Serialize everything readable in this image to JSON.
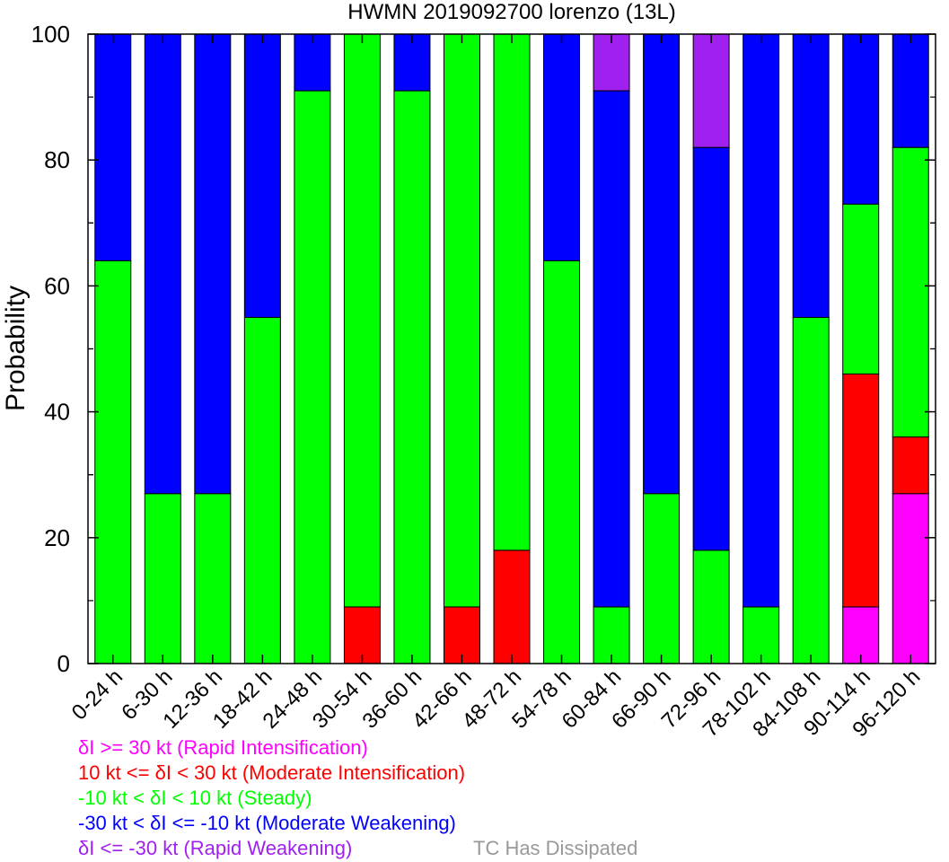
{
  "chart_data": {
    "type": "bar",
    "stacked": true,
    "title": "HWMN 2019092700 lorenzo (13L)",
    "ylabel": "Probability",
    "xlabel": "",
    "ylim": [
      0,
      100
    ],
    "yticks": [
      "0",
      "20",
      "40",
      "60",
      "80",
      "100"
    ],
    "categories": [
      "0-24 h",
      "6-30 h",
      "12-36 h",
      "18-42 h",
      "24-48 h",
      "30-54 h",
      "36-60 h",
      "42-66 h",
      "48-72 h",
      "54-78 h",
      "60-84 h",
      "66-90 h",
      "72-96 h",
      "78-102 h",
      "84-108 h",
      "90-114 h",
      "96-120 h"
    ],
    "series": [
      {
        "name": "δI >= 30 kt (Rapid Intensification)",
        "color": "#ff00ff",
        "values": [
          0,
          0,
          0,
          0,
          0,
          0,
          0,
          0,
          0,
          0,
          0,
          0,
          0,
          0,
          0,
          9,
          27
        ]
      },
      {
        "name": "10 kt <= δI < 30 kt (Moderate Intensification)",
        "color": "#ff0000",
        "values": [
          0,
          0,
          0,
          0,
          0,
          9,
          0,
          9,
          18,
          0,
          0,
          0,
          0,
          0,
          0,
          37,
          9
        ]
      },
      {
        "name": "-10 kt < δI < 10 kt (Steady)",
        "color": "#00ff00",
        "values": [
          64,
          27,
          27,
          55,
          91,
          91,
          91,
          91,
          82,
          64,
          9,
          27,
          18,
          9,
          55,
          27,
          46
        ]
      },
      {
        "name": "-30 kt < δI <= -10 kt (Moderate Weakening)",
        "color": "#0000ff",
        "values": [
          36,
          73,
          73,
          45,
          9,
          0,
          9,
          0,
          0,
          36,
          82,
          73,
          64,
          91,
          45,
          27,
          18
        ]
      },
      {
        "name": "δI <= -30 kt (Rapid Weakening)",
        "color": "#a020f0",
        "values": [
          0,
          0,
          0,
          0,
          0,
          0,
          0,
          0,
          0,
          0,
          9,
          0,
          18,
          0,
          0,
          0,
          0
        ]
      },
      {
        "name": "TC Has Dissipated",
        "color": "#999999",
        "values": [
          0,
          0,
          0,
          0,
          0,
          0,
          0,
          0,
          0,
          0,
          0,
          0,
          0,
          0,
          0,
          0,
          0
        ]
      }
    ],
    "grid": false,
    "legend_position": "bottom-left"
  }
}
